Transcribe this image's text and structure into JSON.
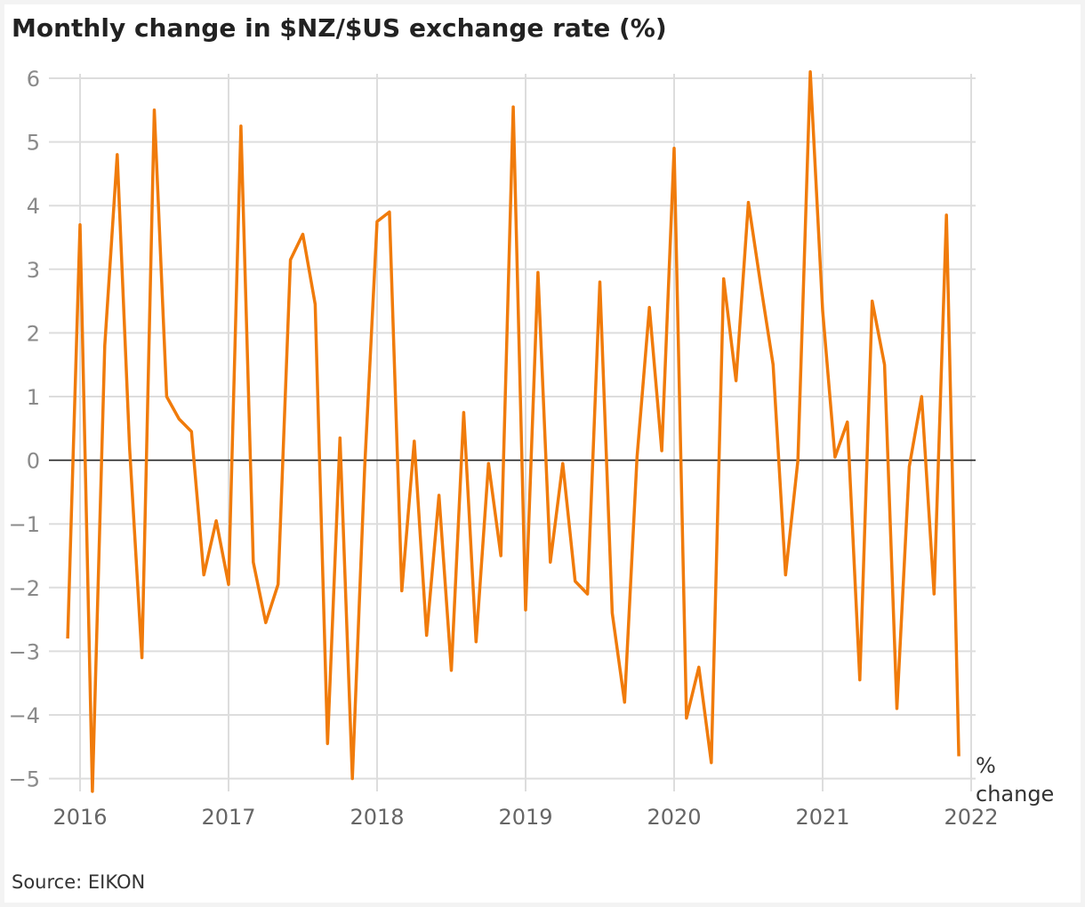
{
  "title": "Monthly change in $NZ/$US exchange rate (%)",
  "source": "Source: EIKON",
  "unit_line1": "%",
  "unit_line2": "change",
  "colors": {
    "series": "#f07b0b",
    "grid": "#dddddd",
    "zero_line": "#222222"
  },
  "chart_data": {
    "type": "line",
    "title": "Monthly change in $NZ/$US exchange rate (%)",
    "xlabel": "",
    "ylabel": "% change",
    "xlim": [
      2016,
      2022
    ],
    "ylim": [
      -5,
      6
    ],
    "x_ticks": [
      "2016",
      "2017",
      "2018",
      "2019",
      "2020",
      "2021",
      "2022"
    ],
    "y_ticks": [
      "6",
      "5",
      "4",
      "3",
      "2",
      "1",
      "0",
      "−1",
      "−2",
      "−3",
      "−4",
      "−5"
    ],
    "grid": true,
    "legend": "none",
    "series": [
      {
        "x_start": "2015-12",
        "x_step": "1 month",
        "values": [
          -2.8,
          3.7,
          -5.2,
          1.8,
          4.8,
          0.2,
          -3.1,
          5.5,
          1.0,
          0.65,
          0.45,
          -1.8,
          -0.95,
          -1.95,
          5.25,
          -1.6,
          -2.55,
          -1.95,
          3.15,
          3.55,
          2.45,
          -4.45,
          0.35,
          -5.0,
          -0.1,
          3.75,
          3.9,
          -2.05,
          0.3,
          -2.75,
          -0.55,
          -3.3,
          0.75,
          -2.85,
          -0.05,
          -1.5,
          5.55,
          -2.35,
          2.95,
          -1.6,
          -0.05,
          -1.9,
          -2.1,
          2.8,
          -2.4,
          -3.8,
          0.05,
          2.4,
          0.15,
          4.9,
          -4.05,
          -3.25,
          -4.75,
          2.85,
          1.25,
          4.05,
          2.75,
          1.5,
          -1.8,
          0.0,
          6.1,
          2.35,
          0.05,
          0.6,
          -3.45,
          2.5,
          1.5,
          -3.9,
          -0.1,
          1.0,
          -2.1,
          3.85,
          -4.65
        ]
      }
    ]
  }
}
